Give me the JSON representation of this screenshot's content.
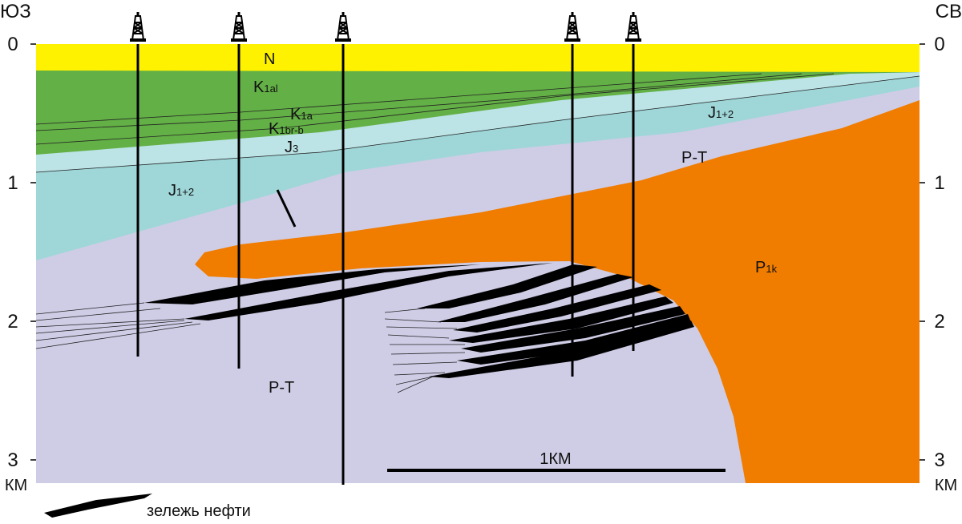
{
  "orientation": {
    "left": "ЮЗ",
    "right": "СВ"
  },
  "depth_axis": {
    "ticks": [
      "0",
      "1",
      "2",
      "3"
    ],
    "unit": "КМ"
  },
  "layers": [
    {
      "main": "N",
      "sub": ""
    },
    {
      "main": "K",
      "sub": "1al"
    },
    {
      "main": "K",
      "sub": "1a"
    },
    {
      "main": "K",
      "sub": "1br-b"
    },
    {
      "main": "J",
      "sub": "3"
    },
    {
      "main": "J",
      "sub": "1+2"
    },
    {
      "main": "J",
      "sub": "1+2"
    },
    {
      "main": "P-T",
      "sub": ""
    },
    {
      "main": "P-T",
      "sub": ""
    },
    {
      "main": "P",
      "sub": "1k"
    }
  ],
  "scale_bar": "1КМ",
  "legend": {
    "oil": "зележь нефти"
  }
}
